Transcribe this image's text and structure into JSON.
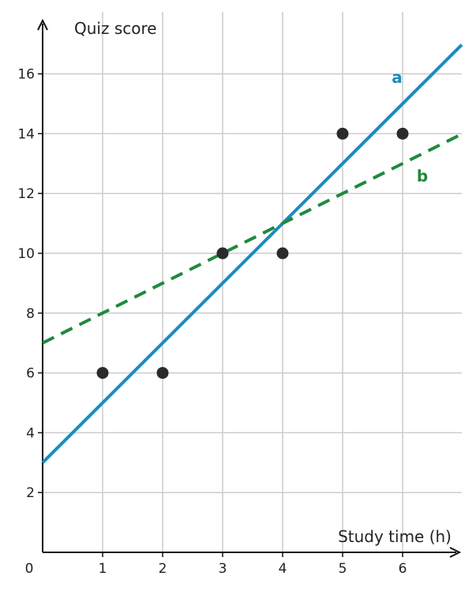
{
  "chart_data": {
    "type": "scatter",
    "title": "",
    "xlabel": "Study time (h)",
    "ylabel": "Quiz score",
    "origin_label": "0",
    "xlim": [
      0,
      7
    ],
    "ylim": [
      0,
      18
    ],
    "x_ticks": [
      "1",
      "2",
      "3",
      "4",
      "5",
      "6"
    ],
    "y_ticks": [
      "2",
      "4",
      "6",
      "8",
      "10",
      "12",
      "14",
      "16"
    ],
    "grid": true,
    "points": [
      {
        "x": 1,
        "y": 6
      },
      {
        "x": 2,
        "y": 6
      },
      {
        "x": 3,
        "y": 10
      },
      {
        "x": 4,
        "y": 10
      },
      {
        "x": 5,
        "y": 14
      },
      {
        "x": 6,
        "y": 14
      }
    ],
    "lines": [
      {
        "name": "a",
        "slope": 2,
        "intercept": 3,
        "style": "solid",
        "color": "#1a8bbf"
      },
      {
        "name": "b",
        "slope": 1,
        "intercept": 7,
        "style": "dashed",
        "color": "#1e8a3c"
      }
    ],
    "colors": {
      "points": "#2b2b2e",
      "grid": "#cccccc",
      "axis": "#111111"
    }
  }
}
